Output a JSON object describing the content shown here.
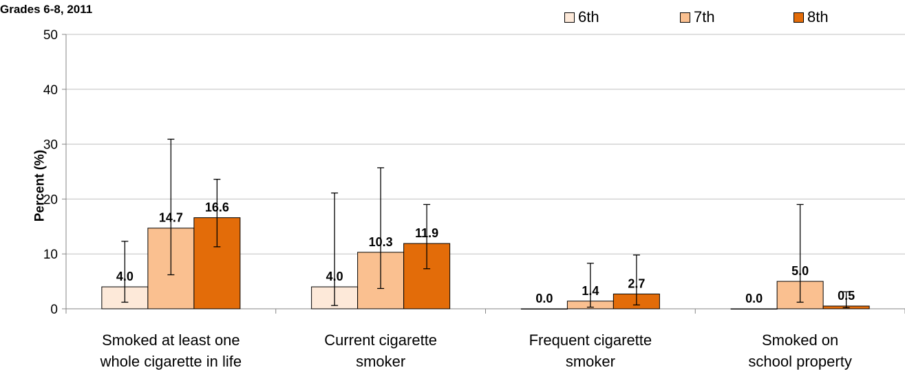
{
  "subtitle": "Grades 6-8, 2011",
  "legend": [
    {
      "label": "6th",
      "color": "#fde9d9"
    },
    {
      "label": "7th",
      "color": "#fac090"
    },
    {
      "label": "8th",
      "color": "#e36c09"
    }
  ],
  "chart_data": {
    "type": "bar",
    "ylabel": "Percent (%)",
    "ylim": [
      0,
      50
    ],
    "yticks": [
      "0",
      "10",
      "20",
      "30",
      "40",
      "50"
    ],
    "grid": true,
    "legend_position": "top-right",
    "categories": [
      [
        "Smoked at least one",
        "whole cigarette in life"
      ],
      [
        "Current cigarette",
        "smoker"
      ],
      [
        "Frequent cigarette",
        "smoker"
      ],
      [
        "Smoked on",
        "school property"
      ]
    ],
    "series": [
      {
        "name": "6th",
        "values": [
          4.0,
          4.0,
          0.0,
          0.0
        ],
        "labels": [
          "4.0",
          "4.0",
          "0.0",
          "0.0"
        ],
        "error_low": [
          1.2,
          0.6,
          0.0,
          0.0
        ],
        "error_high": [
          12.3,
          21.1,
          0.0,
          0.0
        ]
      },
      {
        "name": "7th",
        "values": [
          14.7,
          10.3,
          1.4,
          5.0
        ],
        "labels": [
          "14.7",
          "10.3",
          "1.4",
          "5.0"
        ],
        "error_low": [
          6.2,
          3.7,
          0.3,
          1.2
        ],
        "error_high": [
          30.9,
          25.7,
          8.3,
          19.0
        ]
      },
      {
        "name": "8th",
        "values": [
          16.6,
          11.9,
          2.7,
          0.5
        ],
        "labels": [
          "16.6",
          "11.9",
          "2.7",
          "0.5"
        ],
        "error_low": [
          11.3,
          7.3,
          0.7,
          0.2
        ],
        "error_high": [
          23.6,
          19.0,
          9.8,
          3.1
        ]
      }
    ]
  }
}
